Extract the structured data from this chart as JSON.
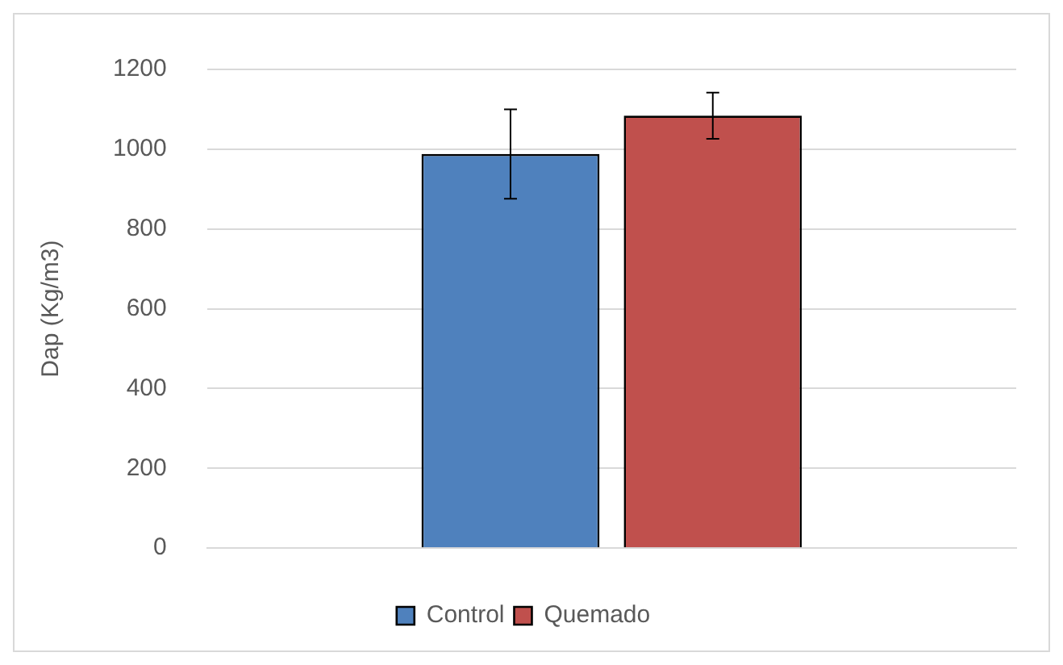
{
  "chart_data": {
    "type": "bar",
    "ylabel": "Dap (Kg/m3)",
    "categories": [
      null
    ],
    "series": [
      {
        "name": "Control",
        "color": "#4f81bd",
        "values": [
          988
        ],
        "errors": [
          112
        ]
      },
      {
        "name": "Quemado",
        "color": "#c0504d",
        "values": [
          1084
        ],
        "errors": [
          58
        ]
      }
    ],
    "ylim": [
      0,
      1200
    ],
    "yticks": [
      0,
      200,
      400,
      600,
      800,
      1000,
      1200
    ],
    "grid": "y",
    "legend": "bottom"
  }
}
